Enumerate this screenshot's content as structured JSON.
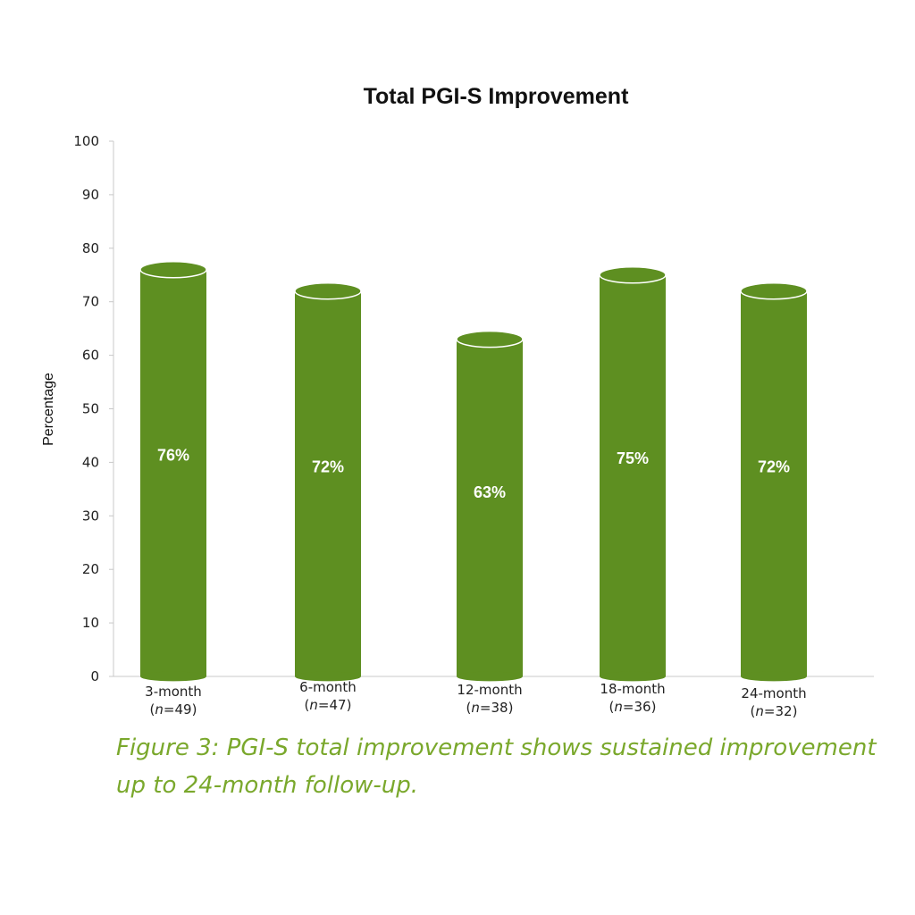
{
  "colors": {
    "bar": "#5e8f21",
    "bar_edge": "#ffffff",
    "axis": "#c8c8c8",
    "caption": "#7aa82c"
  },
  "chart_data": {
    "type": "bar",
    "title": "Total PGI-S Improvement",
    "xlabel": "",
    "ylabel": "Percentage",
    "ylim": [
      0,
      100
    ],
    "yticks": [
      0,
      10,
      20,
      30,
      40,
      50,
      60,
      70,
      80,
      90,
      100
    ],
    "grid": false,
    "style": "cylinder",
    "categories": [
      {
        "label": "3-month",
        "n_prefix": "(",
        "n_var": "n",
        "n_suffix": "=49)"
      },
      {
        "label": "6-month",
        "n_prefix": "(",
        "n_var": "n",
        "n_suffix": "=47)"
      },
      {
        "label": "12-month",
        "n_prefix": "(",
        "n_var": "n",
        "n_suffix": "=38)"
      },
      {
        "label": "18-month",
        "n_prefix": "(",
        "n_var": "n",
        "n_suffix": "=36)"
      },
      {
        "label": "24-month",
        "n_prefix": "(",
        "n_var": "n",
        "n_suffix": "=32)"
      }
    ],
    "values": [
      76,
      72,
      63,
      75,
      72
    ],
    "data_labels": [
      "76%",
      "72%",
      "63%",
      "75%",
      "72%"
    ]
  },
  "caption": "Figure 3: PGI-S total improvement shows sustained improvement up to 24-month follow-up."
}
